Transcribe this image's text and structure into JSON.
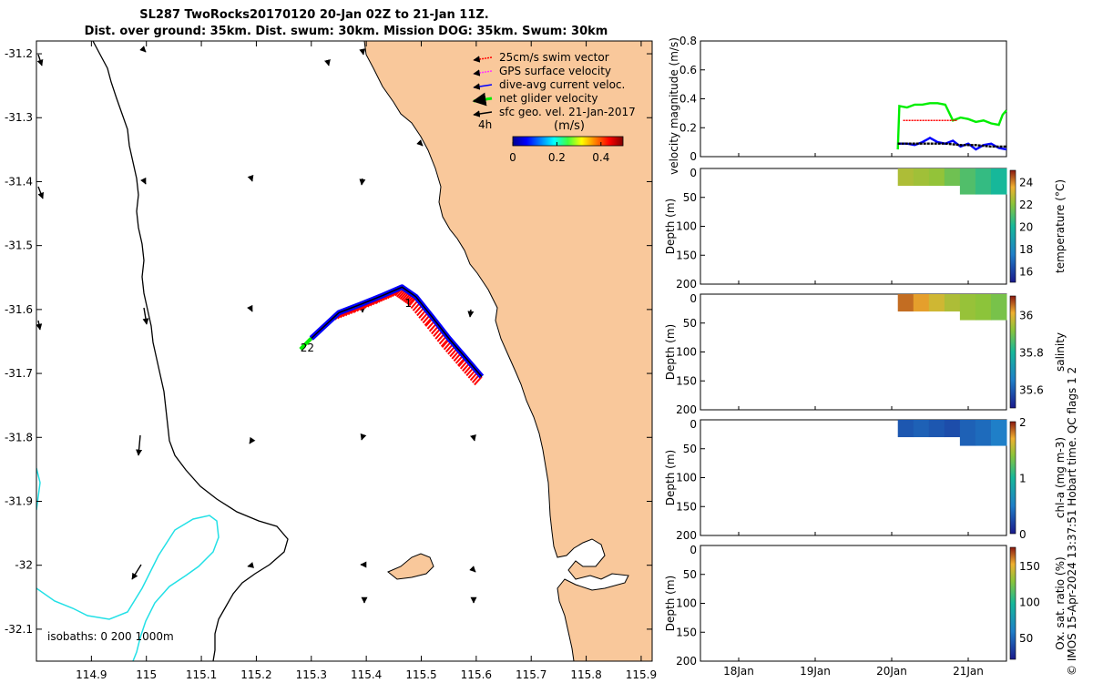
{
  "title": {
    "line1": "SL287 TwoRocks20170120 20-Jan 02Z to 21-Jan 11Z.",
    "line2": "Dist. over ground: 35km. Dist. swum: 30km. Mission DOG: 35km. Swum: 30km"
  },
  "footer": "© IMOS 15-Apr-2024 13:37:51 Hobart time. QC flags 1  2",
  "colors": {
    "land": "#f9c89b",
    "isobath": "#22e0e6",
    "swim": "#ff0000",
    "gps": "#ff33ff",
    "current": "#0000ff",
    "net": "#00ee00",
    "geo": "#000000"
  },
  "chart_data": [
    {
      "type": "map",
      "xlim": [
        114.8,
        115.92
      ],
      "ylim": [
        -32.15,
        -31.18
      ],
      "x_ticks": [
        "114.9",
        "115",
        "115.1",
        "115.2",
        "115.3",
        "115.4",
        "115.5",
        "115.6",
        "115.7",
        "115.8",
        "115.9"
      ],
      "x_tick_values": [
        114.9,
        115.0,
        115.1,
        115.2,
        115.3,
        115.4,
        115.5,
        115.6,
        115.7,
        115.8,
        115.9
      ],
      "y_ticks": [
        "-31.2",
        "-31.3",
        "-31.4",
        "-31.5",
        "-31.6",
        "-31.7",
        "-31.8",
        "-31.9",
        "-32",
        "-32.1"
      ],
      "y_tick_values": [
        -31.2,
        -31.3,
        -31.4,
        -31.5,
        -31.6,
        -31.7,
        -31.8,
        -31.9,
        -32.0,
        -32.1
      ],
      "legend": [
        {
          "label": "25cm/s swim vector",
          "color": "#ff0000"
        },
        {
          "label": "GPS surface velocity",
          "color": "#ff33ff"
        },
        {
          "label": "dive-avg current veloc.",
          "color": "#0000ff"
        },
        {
          "label": "net glider velocity",
          "color": "#00ee00"
        },
        {
          "label": "sfc geo. vel. 21-Jan-2017",
          "color": "#000000"
        }
      ],
      "colorbar": {
        "label": "(m/s)",
        "ticks": [
          "0",
          "0.2",
          "0.4"
        ],
        "tick_values": [
          0,
          0.2,
          0.4
        ],
        "range": [
          0,
          0.5
        ]
      },
      "scale_label": "4h",
      "isobaths_text": "isobaths: 0   200  1000m",
      "track_labels": [
        {
          "text": "1",
          "lon": 115.47,
          "lat": -31.59
        },
        {
          "text": "22",
          "lon": 115.28,
          "lat": -31.66
        }
      ],
      "track": [
        {
          "lon": 115.61,
          "lat": -31.705
        },
        {
          "lon": 115.58,
          "lat": -31.675
        },
        {
          "lon": 115.55,
          "lat": -31.645
        },
        {
          "lon": 115.52,
          "lat": -31.612
        },
        {
          "lon": 115.49,
          "lat": -31.58
        },
        {
          "lon": 115.465,
          "lat": -31.565
        },
        {
          "lon": 115.43,
          "lat": -31.578
        },
        {
          "lon": 115.39,
          "lat": -31.592
        },
        {
          "lon": 115.35,
          "lat": -31.605
        },
        {
          "lon": 115.325,
          "lat": -31.625
        },
        {
          "lon": 115.3,
          "lat": -31.645
        }
      ]
    },
    {
      "type": "line",
      "ylabel": "velocity magnitude (m/s)",
      "ylim": [
        0,
        0.8
      ],
      "y_ticks": [
        "0",
        "0.2",
        "0.4",
        "0.6",
        "0.8"
      ],
      "y_tick_values": [
        0,
        0.2,
        0.4,
        0.6,
        0.8
      ],
      "xlim": [
        17.5,
        21.5
      ],
      "series": [
        {
          "color": "#00ee00",
          "x": [
            20.08,
            20.1,
            20.2,
            20.3,
            20.4,
            20.5,
            20.6,
            20.7,
            20.8,
            20.9,
            21.0,
            21.1,
            21.2,
            21.3,
            21.4,
            21.45,
            21.5
          ],
          "values": [
            0.05,
            0.35,
            0.34,
            0.36,
            0.36,
            0.37,
            0.37,
            0.36,
            0.25,
            0.27,
            0.26,
            0.24,
            0.25,
            0.23,
            0.22,
            0.29,
            0.32
          ]
        },
        {
          "color": "#ff0000",
          "x": [
            20.15,
            20.3,
            20.45,
            20.6,
            20.75,
            20.85
          ],
          "values": [
            0.25,
            0.25,
            0.25,
            0.25,
            0.25,
            0.25
          ]
        },
        {
          "color": "#0000ff",
          "x": [
            20.08,
            20.2,
            20.3,
            20.4,
            20.5,
            20.6,
            20.7,
            20.8,
            20.9,
            21.0,
            21.1,
            21.2,
            21.3,
            21.4,
            21.5
          ],
          "values": [
            0.09,
            0.09,
            0.08,
            0.1,
            0.13,
            0.1,
            0.09,
            0.11,
            0.07,
            0.09,
            0.05,
            0.08,
            0.09,
            0.06,
            0.05
          ]
        },
        {
          "color": "#000000",
          "x": [
            20.08,
            20.3,
            20.5,
            20.7,
            20.9,
            21.1,
            21.3,
            21.5
          ],
          "values": [
            0.09,
            0.09,
            0.09,
            0.09,
            0.08,
            0.08,
            0.07,
            0.07
          ]
        }
      ]
    },
    {
      "type": "heatmap",
      "ylabel": "Depth (m)",
      "clabel": "temperature (°C)",
      "y_ticks": [
        "0",
        "50",
        "100",
        "150",
        "200"
      ],
      "y_tick_values": [
        0,
        50,
        100,
        150,
        200
      ],
      "ylim": [
        200,
        0
      ],
      "x_range": [
        20.08,
        21.5
      ],
      "c_ticks": [
        "16",
        "18",
        "20",
        "22",
        "24"
      ],
      "c_tick_values": [
        16,
        18,
        20,
        22,
        24
      ],
      "crange": [
        15,
        25
      ],
      "depth_segments": [
        {
          "x0": 20.08,
          "x1": 20.95,
          "d": 30
        },
        {
          "x0": 20.95,
          "x1": 21.5,
          "d": 45
        }
      ],
      "values": [
        22.5,
        22.3,
        22.1,
        21.5,
        21.0,
        20.5,
        20.0
      ]
    },
    {
      "type": "heatmap",
      "ylabel": "Depth (m)",
      "clabel": "salinity",
      "y_ticks": [
        "0",
        "50",
        "100",
        "150",
        "200"
      ],
      "y_tick_values": [
        0,
        50,
        100,
        150,
        200
      ],
      "ylim": [
        200,
        0
      ],
      "x_range": [
        20.08,
        21.5
      ],
      "c_ticks": [
        "35.6",
        "35.8",
        "36"
      ],
      "c_tick_values": [
        35.6,
        35.8,
        36
      ],
      "crange": [
        35.5,
        36.1
      ],
      "depth_segments": [
        {
          "x0": 20.08,
          "x1": 20.95,
          "d": 30
        },
        {
          "x0": 20.95,
          "x1": 21.5,
          "d": 45
        }
      ],
      "values": [
        36.05,
        36.02,
        35.98,
        35.95,
        35.93,
        35.92,
        35.9
      ]
    },
    {
      "type": "heatmap",
      "ylabel": "Depth (m)",
      "clabel": "chl-a (mg m-3)",
      "y_ticks": [
        "0",
        "50",
        "100",
        "150",
        "200"
      ],
      "y_tick_values": [
        0,
        50,
        100,
        150,
        200
      ],
      "ylim": [
        200,
        0
      ],
      "x_range": [
        20.08,
        21.5
      ],
      "c_ticks": [
        "0",
        "1",
        "2"
      ],
      "c_tick_values": [
        0,
        1,
        2
      ],
      "crange": [
        0,
        2
      ],
      "depth_segments": [
        {
          "x0": 20.08,
          "x1": 20.95,
          "d": 30
        },
        {
          "x0": 20.95,
          "x1": 21.5,
          "d": 45
        }
      ],
      "values": [
        0.3,
        0.35,
        0.3,
        0.25,
        0.35,
        0.4,
        0.5
      ]
    },
    {
      "type": "heatmap",
      "ylabel": "Depth (m)",
      "clabel": "Ox. sat. ratio (%)",
      "y_ticks": [
        "0",
        "50",
        "100",
        "150",
        "200"
      ],
      "y_tick_values": [
        0,
        50,
        100,
        150,
        200
      ],
      "ylim": [
        200,
        0
      ],
      "c_ticks": [
        "50",
        "100",
        "150"
      ],
      "c_tick_values": [
        50,
        100,
        150
      ],
      "crange": [
        20,
        175
      ],
      "x_ticks": [
        "18Jan",
        "19Jan",
        "20Jan",
        "21Jan"
      ],
      "x_tick_values": [
        18,
        19,
        20,
        21
      ],
      "xlim": [
        17.5,
        21.5
      ],
      "values": []
    }
  ]
}
